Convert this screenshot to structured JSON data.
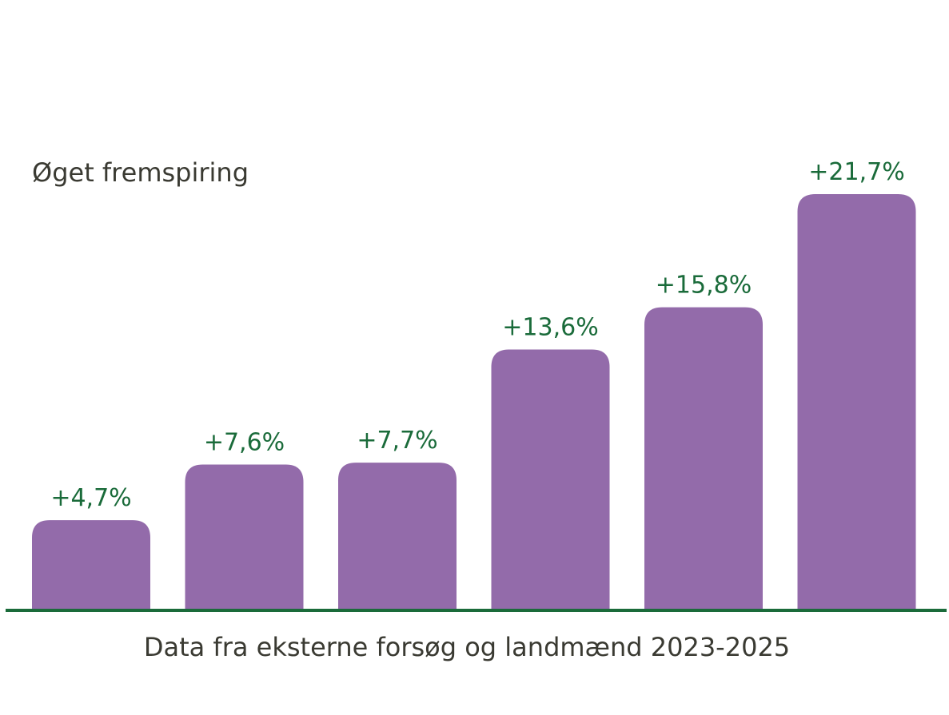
{
  "chart_data": {
    "type": "bar",
    "title": "",
    "ylabel": "Øget fremspiring",
    "xlabel": "Data fra eksterne forsøg og landmænd 2023-2025",
    "values": [
      4.7,
      7.6,
      7.7,
      13.6,
      15.8,
      21.7
    ],
    "value_labels": [
      "+4,7%",
      "+7,6%",
      "+7,7%",
      "+13,6%",
      "+15,8%",
      "+21,7%"
    ],
    "unit": "%",
    "ylim": [
      0,
      21.7
    ],
    "grid": false,
    "legend": "none",
    "colors": {
      "bar": "#936BAA",
      "value_label": "#1A6B3A",
      "axis": "#1A6B3A",
      "text": "#3A3A32"
    }
  }
}
